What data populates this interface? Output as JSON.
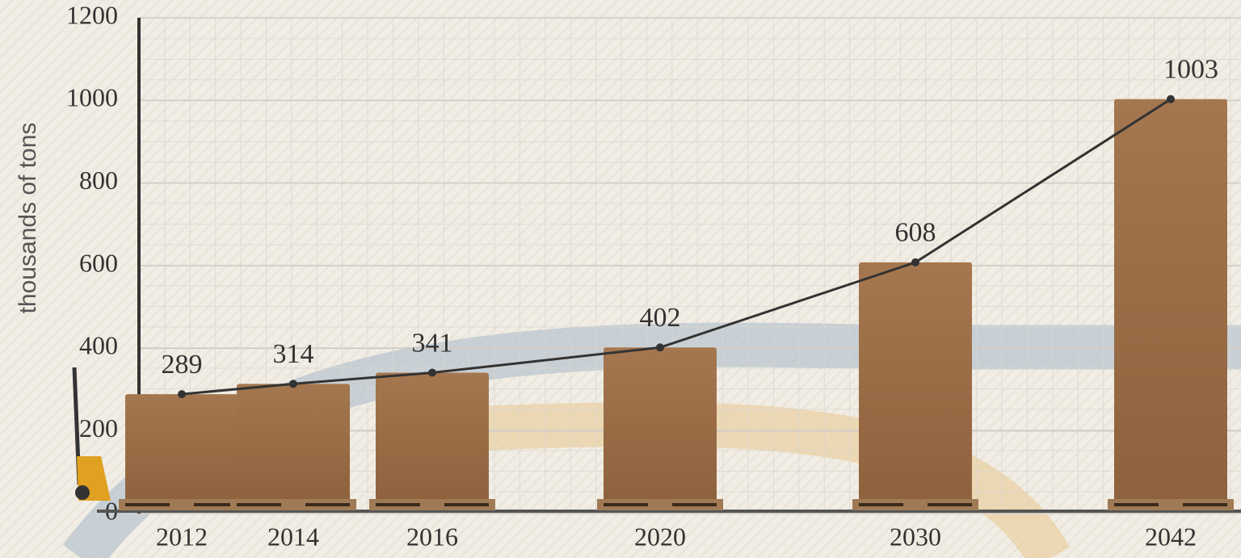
{
  "chart_data": {
    "type": "line",
    "y_label": "thousands of tons",
    "categories": [
      "2012",
      "2014",
      "2016",
      "2020",
      "2030",
      "2042"
    ],
    "values": [
      289,
      314,
      341,
      402,
      608,
      1003
    ],
    "ylim": [
      0,
      1200
    ],
    "yticks": [
      0,
      200,
      400,
      600,
      800,
      1000,
      1200
    ],
    "color": "#333333",
    "bar_color": "#9c6d45",
    "grid": true
  }
}
